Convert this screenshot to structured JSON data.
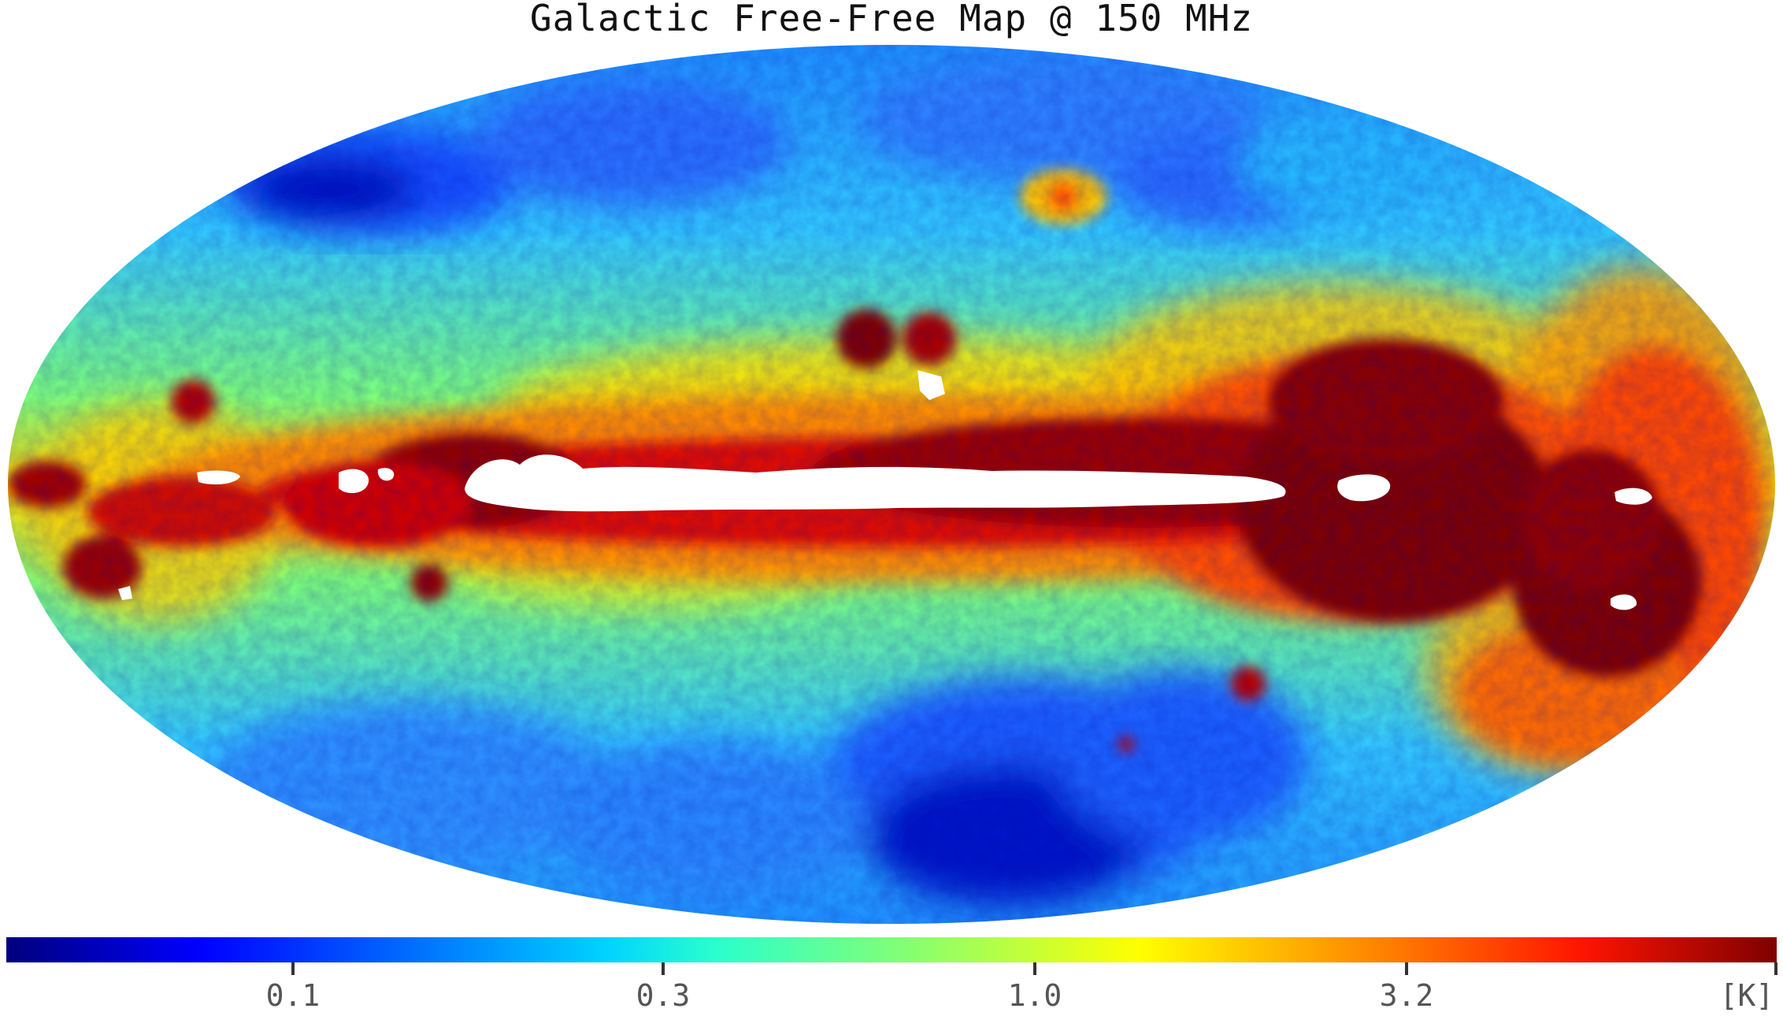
{
  "title": "Galactic Free-Free Map @ 150 MHz",
  "colormap": {
    "name": "jet",
    "stops": [
      "#00007f",
      "#0000ff",
      "#007fff",
      "#00ffff",
      "#7fff7f",
      "#ffff00",
      "#ff7f00",
      "#ff0000",
      "#7f0000"
    ],
    "scale": "log",
    "unit_label": "[K]",
    "ticks": [
      {
        "label": "0.1"
      },
      {
        "label": "0.3"
      },
      {
        "label": "1.0"
      },
      {
        "label": "3.2"
      }
    ]
  },
  "map": {
    "projection": "mollweide",
    "masked_color": "#ffffff"
  }
}
